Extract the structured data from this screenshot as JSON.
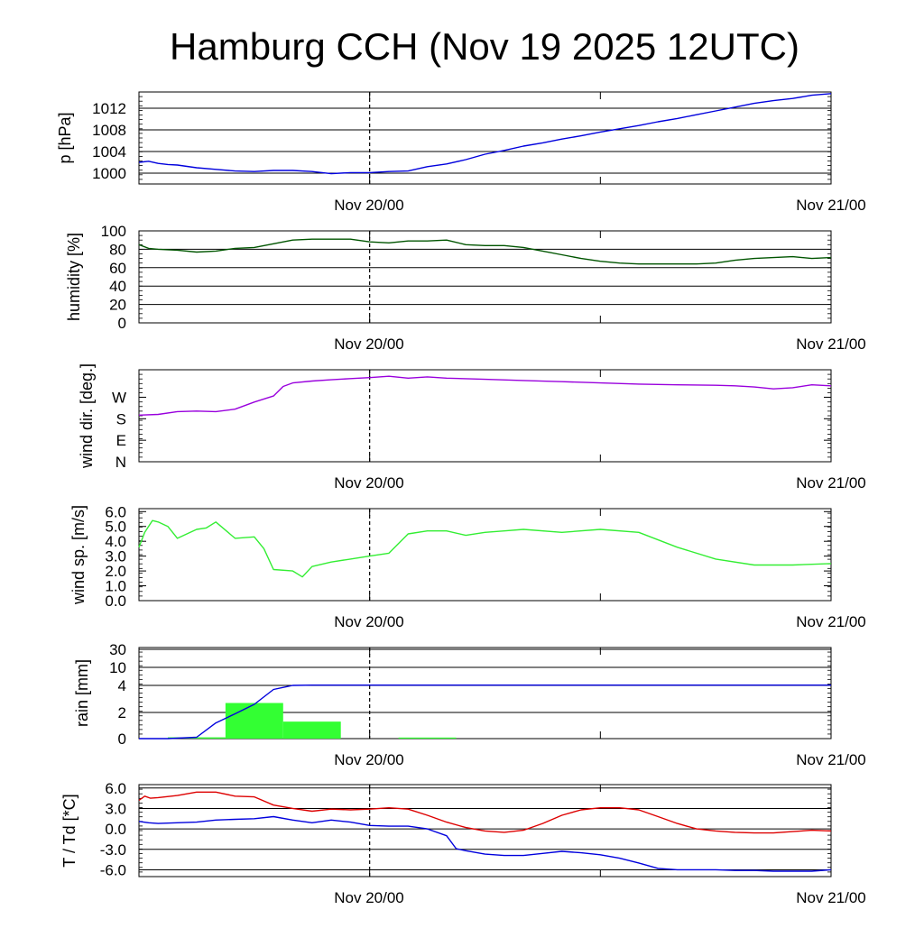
{
  "title": "Hamburg CCH (Nov 19 2025 12UTC)",
  "x_labels": [
    "Nov 20/00",
    "Nov 21/00"
  ],
  "colors": {
    "pressure": "#0000dd",
    "humidity": "#005500",
    "wind_dir": "#9900dd",
    "wind_speed": "#33ee33",
    "rain_bar": "#33ff33",
    "rain_line": "#0000dd",
    "temperature": "#dd0000",
    "dewpoint": "#0000dd"
  },
  "chart_data": [
    {
      "type": "line",
      "ylabel": "p [hPa]",
      "ytick_labels": [
        "1000",
        "1004",
        "1008",
        "1012"
      ],
      "ylim": [
        998,
        1015
      ],
      "x_range_hours": [
        0,
        36
      ],
      "x_unit": "hours since Nov 19 12UTC",
      "series": [
        {
          "key": "pressure",
          "x": [
            0,
            0.5,
            1,
            1.5,
            2,
            3,
            4,
            5,
            6,
            7,
            8,
            9,
            10,
            11,
            12,
            13,
            14,
            15,
            16,
            17,
            18,
            19,
            20,
            21,
            22,
            23,
            24,
            25,
            26,
            27,
            28,
            29,
            30,
            31,
            32,
            33,
            34,
            35,
            36
          ],
          "y": [
            1002,
            1002.2,
            1001.8,
            1001.6,
            1001.5,
            1001,
            1000.7,
            1000.4,
            1000.3,
            1000.5,
            1000.5,
            1000.3,
            999.9,
            1000.1,
            1000.1,
            1000.3,
            1000.4,
            1001.2,
            1001.7,
            1002.5,
            1003.5,
            1004.2,
            1005,
            1005.6,
            1006.3,
            1006.9,
            1007.6,
            1008.2,
            1008.8,
            1009.5,
            1010.1,
            1010.8,
            1011.5,
            1012.2,
            1012.9,
            1013.4,
            1013.8,
            1014.4,
            1014.7
          ]
        }
      ]
    },
    {
      "type": "line",
      "ylabel": "humidity [%]",
      "ytick_labels": [
        "0",
        "20",
        "40",
        "60",
        "80",
        "100"
      ],
      "ylim": [
        0,
        100
      ],
      "x_range_hours": [
        0,
        36
      ],
      "series": [
        {
          "key": "humidity",
          "x": [
            0,
            0.5,
            1,
            2,
            3,
            4,
            5,
            6,
            7,
            8,
            9,
            10,
            11,
            12,
            13,
            14,
            15,
            16,
            17,
            18,
            19,
            20,
            21,
            22,
            23,
            24,
            25,
            26,
            27,
            28,
            29,
            30,
            31,
            32,
            33,
            34,
            35,
            36
          ],
          "y": [
            85,
            81,
            80,
            79,
            77,
            78,
            81,
            82,
            86,
            90,
            91,
            91,
            91,
            88,
            87,
            89,
            89,
            90,
            85,
            84,
            84,
            82,
            78,
            74,
            70,
            67,
            65,
            64,
            64,
            64,
            64,
            65,
            68,
            70,
            71,
            72,
            70,
            71
          ]
        }
      ]
    },
    {
      "type": "line",
      "ylabel": "wind dir. [deg.]",
      "ytick_labels": [
        "N",
        "E",
        "S",
        "W"
      ],
      "ylim": [
        0,
        385
      ],
      "x_range_hours": [
        0,
        36
      ],
      "series": [
        {
          "key": "wind_dir",
          "x": [
            0,
            1,
            2,
            3,
            4,
            5,
            6,
            7,
            7.5,
            8,
            9,
            10,
            11,
            12,
            13,
            14,
            15,
            16,
            18,
            20,
            22,
            24,
            26,
            28,
            30,
            31,
            32,
            33,
            34,
            35,
            36
          ],
          "y": [
            195,
            198,
            210,
            212,
            210,
            220,
            250,
            275,
            315,
            330,
            338,
            343,
            348,
            352,
            358,
            350,
            355,
            350,
            345,
            340,
            335,
            330,
            325,
            322,
            320,
            318,
            313,
            305,
            310,
            322,
            318
          ]
        }
      ]
    },
    {
      "type": "line",
      "ylabel": "wind sp. [m/s]",
      "ytick_labels": [
        "0.0",
        "1.0",
        "2.0",
        "3.0",
        "4.0",
        "5.0",
        "6.0"
      ],
      "ylim": [
        0,
        6.2
      ],
      "x_range_hours": [
        0,
        36
      ],
      "series": [
        {
          "key": "wind_speed",
          "x": [
            0,
            0.3,
            0.7,
            1,
            1.5,
            2,
            3,
            3.5,
            4,
            5,
            6,
            6.5,
            7,
            8,
            8.5,
            9,
            10,
            11,
            12,
            13,
            14,
            15,
            16,
            17,
            18,
            19,
            20,
            22,
            24,
            26,
            28,
            30,
            32,
            34,
            36
          ],
          "y": [
            3.6,
            4.6,
            5.4,
            5.3,
            5.0,
            4.2,
            4.8,
            4.9,
            5.3,
            4.2,
            4.3,
            3.5,
            2.1,
            2.0,
            1.6,
            2.3,
            2.6,
            2.8,
            3.0,
            3.2,
            4.5,
            4.7,
            4.7,
            4.4,
            4.6,
            4.7,
            4.8,
            4.6,
            4.8,
            4.6,
            3.6,
            2.8,
            2.4,
            2.4,
            2.5
          ]
        }
      ]
    },
    {
      "type": "bar",
      "ylabel": "rain [mm]",
      "ytick_labels": [
        "0",
        "2",
        "4",
        "10",
        "30"
      ],
      "x_range_hours": [
        0,
        36
      ],
      "bars": [
        {
          "x_start": 1.5,
          "x_end": 4.5,
          "value": 0.1
        },
        {
          "x_start": 4.5,
          "x_end": 7.5,
          "value": 2.7
        },
        {
          "x_start": 7.5,
          "x_end": 10.5,
          "value": 1.3
        },
        {
          "x_start": 13.5,
          "x_end": 16.5,
          "value": 0.05
        }
      ],
      "cumulative": {
        "key": "rain_line",
        "x": [
          0,
          1.5,
          3,
          4,
          5,
          6,
          7,
          8,
          9,
          12,
          18,
          24,
          30,
          36
        ],
        "y": [
          0,
          0,
          0.1,
          1.2,
          1.9,
          2.6,
          3.7,
          4.0,
          4.1,
          4.1,
          4.1,
          4.1,
          4.1,
          4.1
        ]
      }
    },
    {
      "type": "line",
      "ylabel": "T / Td [*C]",
      "ytick_labels": [
        "-6.0",
        "-3.0",
        "0.0",
        "3.0",
        "6.0"
      ],
      "ylim": [
        -7,
        6.5
      ],
      "x_range_hours": [
        0,
        36
      ],
      "series": [
        {
          "key": "temperature",
          "x": [
            0,
            0.3,
            0.6,
            1,
            2,
            3,
            4,
            5,
            6,
            7,
            8,
            9,
            10,
            11,
            12,
            13,
            14,
            15,
            16,
            17,
            18,
            19,
            20,
            21,
            22,
            23,
            24,
            25,
            26,
            27,
            28,
            29,
            30,
            31,
            32,
            33,
            34,
            35,
            36
          ],
          "y": [
            4.2,
            4.8,
            4.5,
            4.6,
            4.9,
            5.4,
            5.4,
            4.8,
            4.7,
            3.5,
            3.0,
            2.6,
            2.9,
            2.8,
            2.9,
            3.1,
            2.9,
            2.0,
            1.0,
            0.2,
            -0.3,
            -0.5,
            -0.2,
            0.8,
            2.0,
            2.8,
            3.1,
            3.1,
            2.8,
            1.8,
            0.8,
            0.0,
            -0.3,
            -0.5,
            -0.6,
            -0.6,
            -0.4,
            -0.2,
            -0.3
          ]
        },
        {
          "key": "dewpoint",
          "x": [
            0,
            0.5,
            1,
            2,
            3,
            4,
            5,
            6,
            7,
            8,
            9,
            10,
            11,
            12,
            13,
            14,
            15,
            16,
            16.5,
            17,
            18,
            19,
            20,
            21,
            22,
            23,
            24,
            25,
            26,
            27,
            28,
            29,
            30,
            31,
            32,
            33,
            34,
            35,
            36
          ],
          "y": [
            1.1,
            0.9,
            0.8,
            0.9,
            1.0,
            1.3,
            1.4,
            1.5,
            1.8,
            1.3,
            0.9,
            1.3,
            1.0,
            0.5,
            0.4,
            0.4,
            0.0,
            -1.0,
            -2.9,
            -3.2,
            -3.7,
            -3.9,
            -3.9,
            -3.6,
            -3.3,
            -3.5,
            -3.8,
            -4.3,
            -5.0,
            -5.8,
            -6.0,
            -6.0,
            -6.0,
            -6.1,
            -6.1,
            -6.2,
            -6.2,
            -6.2,
            -6.0
          ]
        }
      ]
    }
  ]
}
